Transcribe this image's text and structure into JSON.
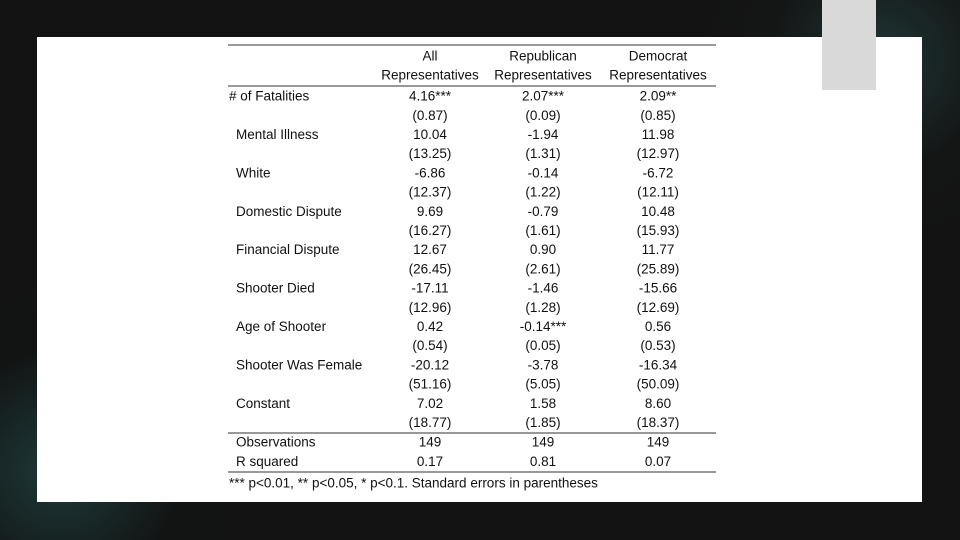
{
  "table": {
    "columns": [
      {
        "line1": "All",
        "line2": "Representatives"
      },
      {
        "line1": "Republican",
        "line2": "Representatives"
      },
      {
        "line1": "Democrat",
        "line2": "Representatives"
      }
    ],
    "rows": [
      {
        "label": "# of Fatalities",
        "cells": [
          "4.16***",
          "2.07***",
          "2.09**"
        ],
        "se": [
          "(0.87)",
          "(0.09)",
          "(0.85)"
        ]
      },
      {
        "label": "Mental Illness",
        "cells": [
          "10.04",
          "-1.94",
          "11.98"
        ],
        "se": [
          "(13.25)",
          "(1.31)",
          "(12.97)"
        ]
      },
      {
        "label": "White",
        "cells": [
          "-6.86",
          "-0.14",
          "-6.72"
        ],
        "se": [
          "(12.37)",
          "(1.22)",
          "(12.11)"
        ]
      },
      {
        "label": "Domestic Dispute",
        "cells": [
          "9.69",
          "-0.79",
          "10.48"
        ],
        "se": [
          "(16.27)",
          "(1.61)",
          "(15.93)"
        ]
      },
      {
        "label": "Financial Dispute",
        "cells": [
          "12.67",
          "0.90",
          "11.77"
        ],
        "se": [
          "(26.45)",
          "(2.61)",
          "(25.89)"
        ]
      },
      {
        "label": "Shooter Died",
        "cells": [
          "-17.11",
          "-1.46",
          "-15.66"
        ],
        "se": [
          "(12.96)",
          "(1.28)",
          "(12.69)"
        ]
      },
      {
        "label": "Age of Shooter",
        "cells": [
          "0.42",
          "-0.14***",
          "0.56"
        ],
        "se": [
          "(0.54)",
          "(0.05)",
          "(0.53)"
        ]
      },
      {
        "label": "Shooter Was Female",
        "cells": [
          "-20.12",
          "-3.78",
          "-16.34"
        ],
        "se": [
          "(51.16)",
          "(5.05)",
          "(50.09)"
        ]
      },
      {
        "label": "Constant",
        "cells": [
          "7.02",
          "1.58",
          "8.60"
        ],
        "se": [
          "(18.77)",
          "(1.85)",
          "(18.37)"
        ]
      }
    ],
    "stats": [
      {
        "label": "Observations",
        "cells": [
          "149",
          "149",
          "149"
        ]
      },
      {
        "label": "R squared",
        "cells": [
          "0.17",
          "0.81",
          "0.07"
        ]
      }
    ],
    "footnote": "*** p<0.01, ** p<0.05, * p<0.1. Standard errors in parentheses"
  }
}
